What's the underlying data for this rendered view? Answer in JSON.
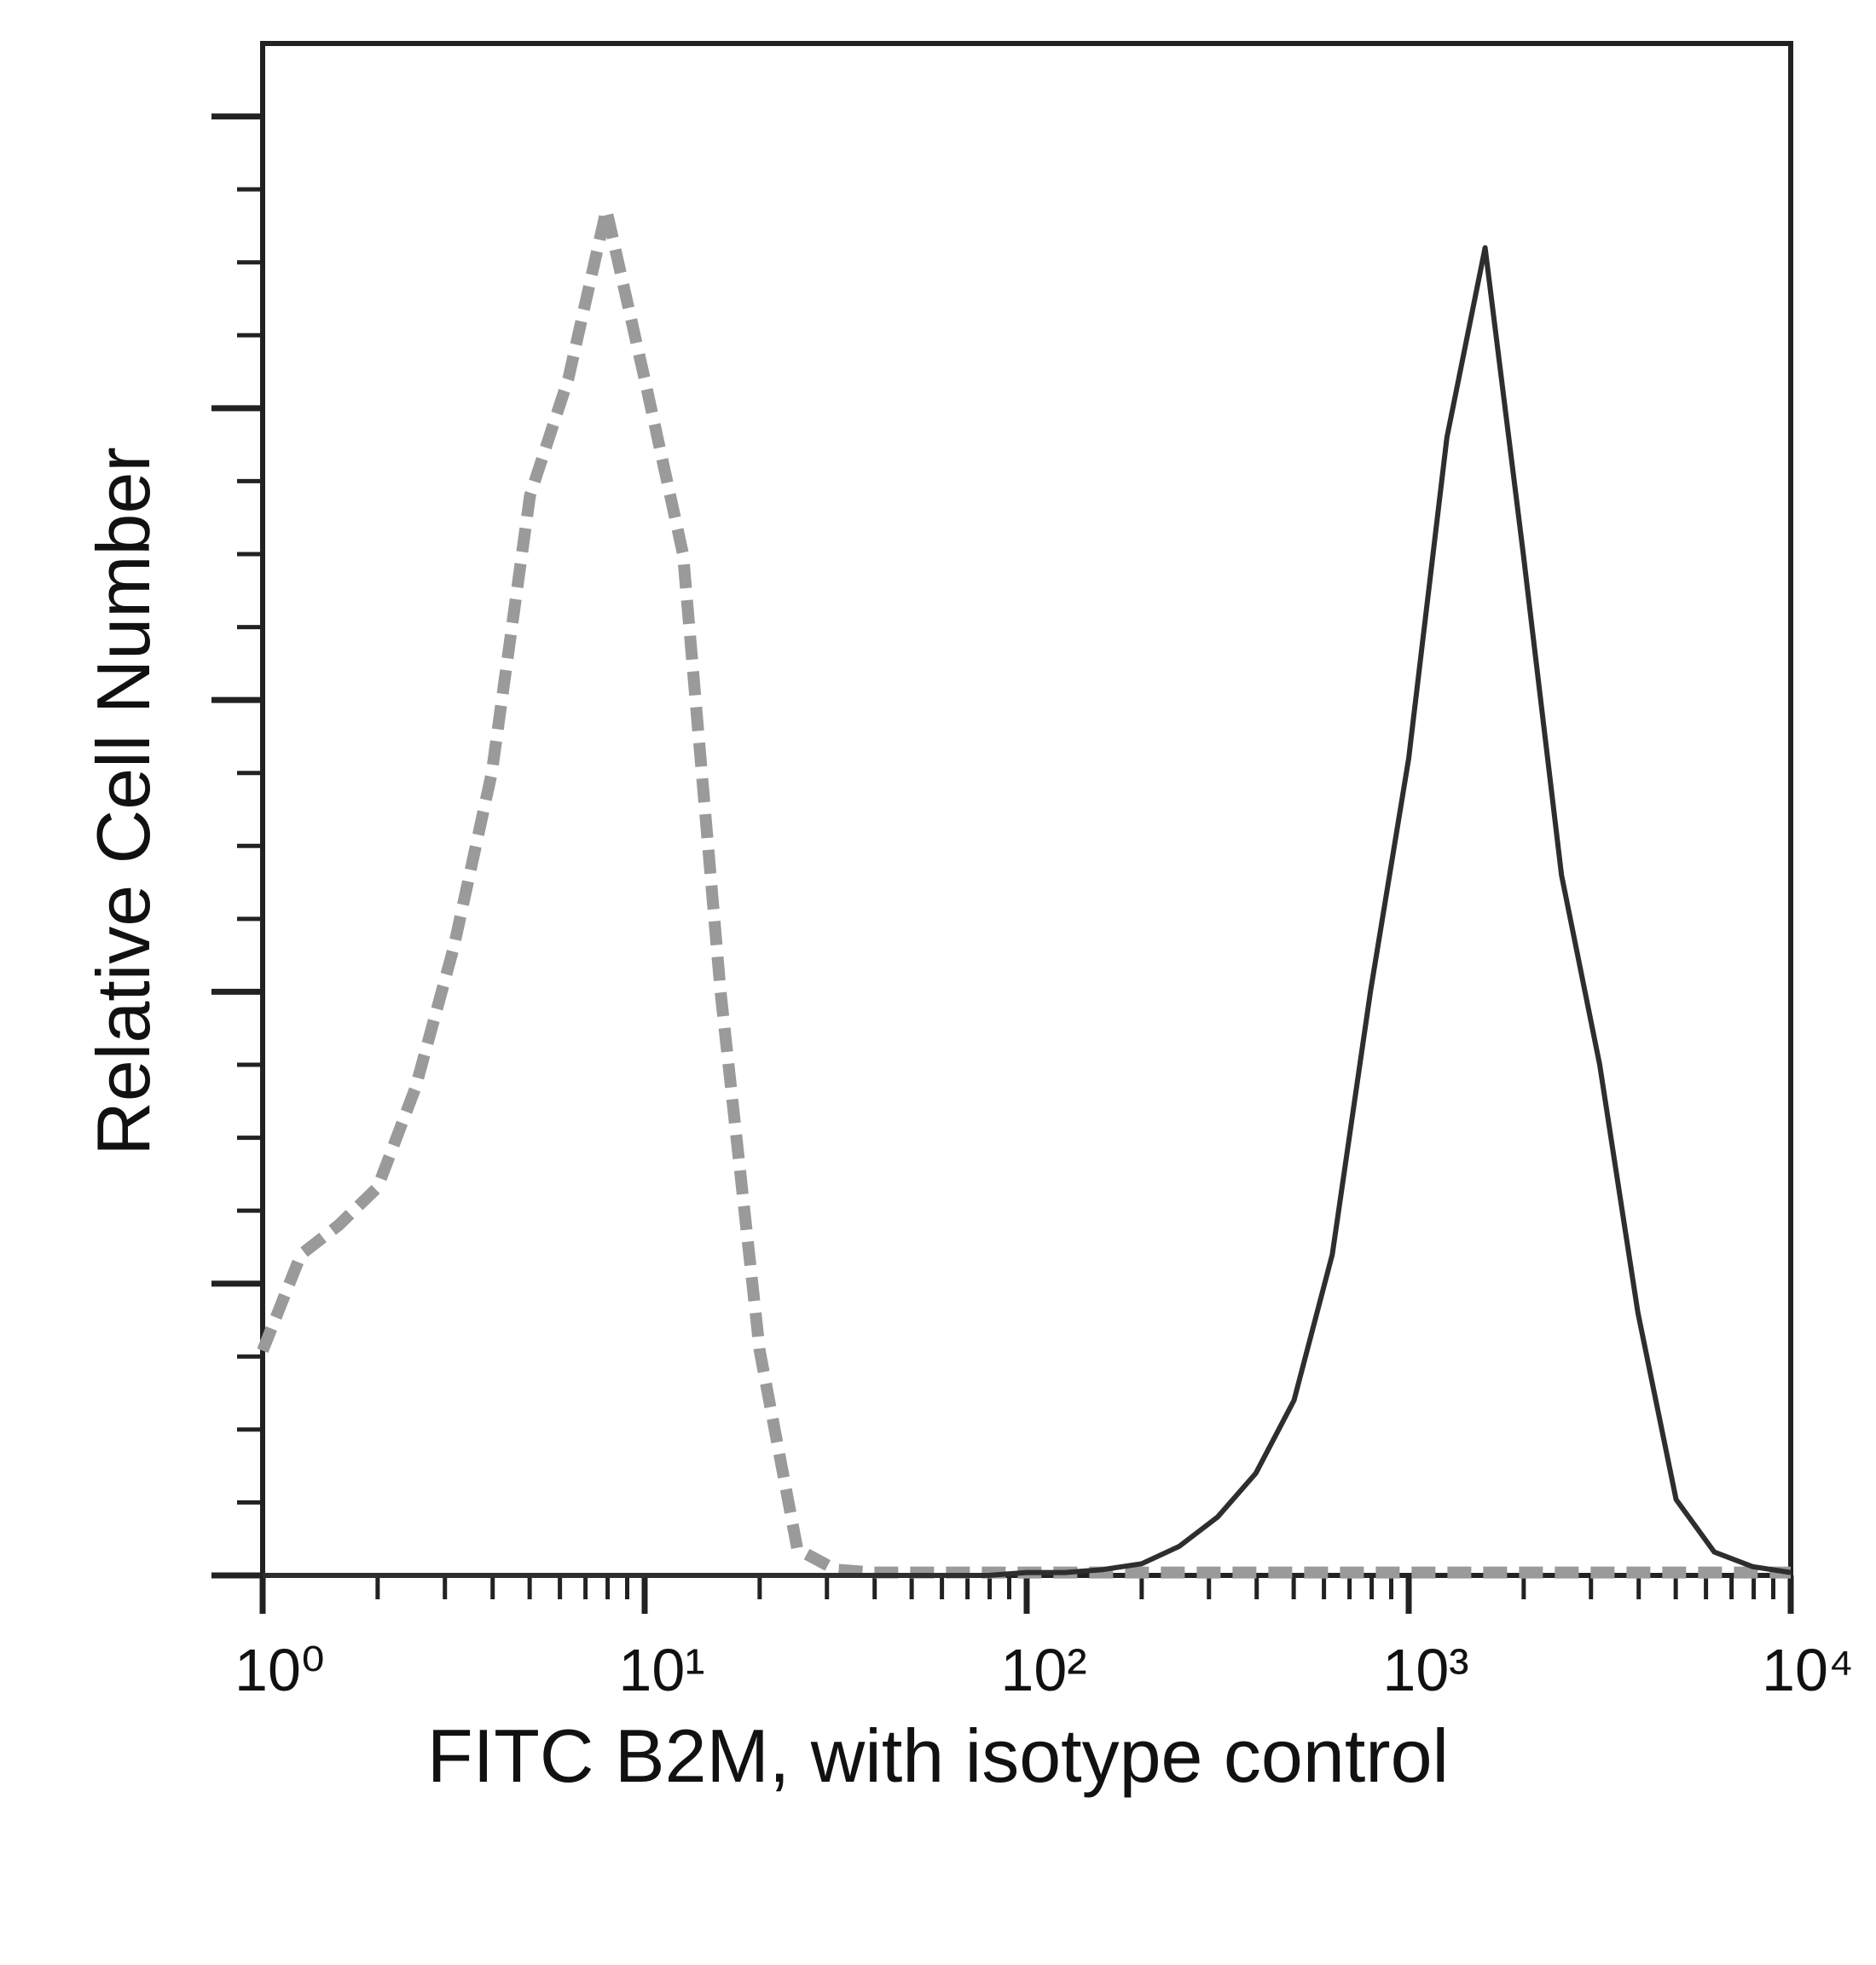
{
  "chart_data": {
    "type": "line",
    "x_label": "FITC B2M, with isotype control",
    "y_label": "Relative Cell Number",
    "log_x": true,
    "grid": false,
    "xlim": [
      1,
      10000
    ],
    "xticks": [
      {
        "value": 1,
        "label": "10⁰"
      },
      {
        "value": 10,
        "label": "10¹"
      },
      {
        "value": 100,
        "label": "10²"
      },
      {
        "value": 1000,
        "label": "10³"
      },
      {
        "value": 10000,
        "label": "10⁴"
      }
    ],
    "xminorticks": [
      2,
      3,
      4,
      5,
      6,
      7,
      8,
      9,
      20,
      30,
      40,
      50,
      60,
      70,
      80,
      90,
      200,
      300,
      400,
      500,
      600,
      700,
      800,
      900,
      2000,
      3000,
      4000,
      5000,
      6000,
      7000,
      8000,
      9000
    ],
    "ylim": [
      0,
      5.25
    ],
    "yticks": [
      0,
      1,
      2,
      3,
      4,
      5
    ],
    "yminorticks": [
      0.25,
      0.5,
      0.75,
      1.25,
      1.5,
      1.75,
      2.25,
      2.5,
      2.75,
      3.25,
      3.5,
      3.75,
      4.25,
      4.5,
      4.75
    ],
    "x": [
      1,
      1.26,
      1.58,
      2,
      2.51,
      3.16,
      3.98,
      5.01,
      6.31,
      7.94,
      10,
      12.6,
      15.8,
      20,
      25.1,
      31.6,
      39.8,
      50.1,
      63.1,
      79.4,
      100,
      126,
      158,
      200,
      251,
      316,
      398,
      501,
      631,
      794,
      1000,
      1259,
      1585,
      1995,
      2512,
      3162,
      3981,
      5012,
      6310,
      7943,
      10000
    ],
    "series": [
      {
        "color": "#9a9a9a",
        "dashed": true,
        "values": [
          0.77,
          1.1,
          1.2,
          1.33,
          1.67,
          2.15,
          2.75,
          3.7,
          4.1,
          4.68,
          4.1,
          3.5,
          2.0,
          0.77,
          0.09,
          0.02,
          0.01,
          0.01,
          0.01,
          0.01,
          0.01,
          0.01,
          0.01,
          0.01,
          0.01,
          0.01,
          0.01,
          0.01,
          0.01,
          0.01,
          0.01,
          0.01,
          0.01,
          0.01,
          0.01,
          0.01,
          0.01,
          0.01,
          0.01,
          0.01,
          0.01
        ]
      },
      {
        "color": "#2e2e2e",
        "dashed": false,
        "values": [
          0,
          0,
          0,
          0,
          0,
          0,
          0,
          0,
          0,
          0,
          0,
          0,
          0,
          0,
          0,
          0,
          0,
          0,
          0,
          0,
          0.01,
          0.01,
          0.02,
          0.04,
          0.1,
          0.2,
          0.35,
          0.6,
          1.1,
          2.0,
          2.8,
          3.9,
          4.55,
          3.5,
          2.4,
          1.75,
          0.9,
          0.26,
          0.08,
          0.03,
          0.01
        ]
      }
    ]
  }
}
